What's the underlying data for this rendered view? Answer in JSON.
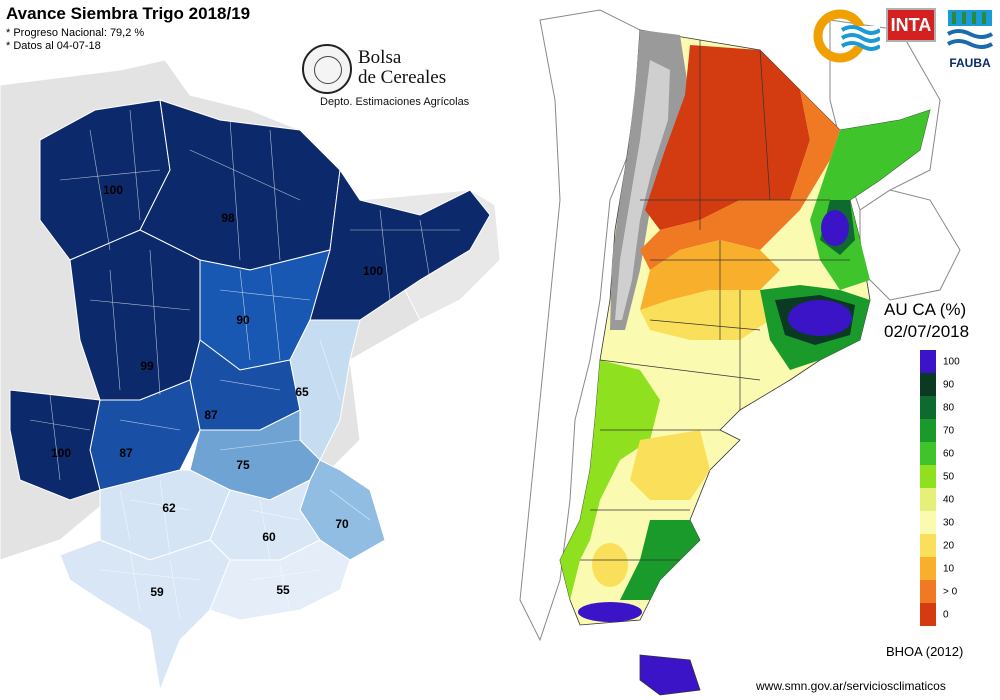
{
  "left_map": {
    "title": "Avance Siembra Trigo 2018/19",
    "notes": [
      "* Progreso Nacional: 79,2 %",
      "* Datos al 04-07-18"
    ],
    "publisher": {
      "line1": "Bolsa",
      "line2": "de Cereales",
      "department": "Depto. Estimaciones Agrícolas"
    },
    "zones": [
      {
        "label": "100",
        "color": "#0c2a6b"
      },
      {
        "label": "98",
        "color": "#0c2a6b"
      },
      {
        "label": "100",
        "color": "#0c2a6b"
      },
      {
        "label": "90",
        "color": "#1858b3"
      },
      {
        "label": "99",
        "color": "#0c2a6b"
      },
      {
        "label": "87",
        "color": "#1a4fa6"
      },
      {
        "label": "65",
        "color": "#c6dcf0"
      },
      {
        "label": "87",
        "color": "#1a4fa6"
      },
      {
        "label": "100",
        "color": "#0c2a6b"
      },
      {
        "label": "75",
        "color": "#6fa3d4"
      },
      {
        "label": "62",
        "color": "#d4e4f4"
      },
      {
        "label": "70",
        "color": "#92bde3"
      },
      {
        "label": "60",
        "color": "#d8e6f5"
      },
      {
        "label": "59",
        "color": "#d8e6f5"
      },
      {
        "label": "55",
        "color": "#e4edf8"
      }
    ]
  },
  "right_map": {
    "legend_title_line1": "AU CA (%)",
    "legend_title_line2": "02/07/2018",
    "legend": [
      {
        "label": "100",
        "color": "#3b14c8"
      },
      {
        "label": "90",
        "color": "#0a3a24"
      },
      {
        "label": "80",
        "color": "#0e6a2e"
      },
      {
        "label": "70",
        "color": "#1a9a2a"
      },
      {
        "label": "60",
        "color": "#3fc42c"
      },
      {
        "label": "50",
        "color": "#8fe01e"
      },
      {
        "label": "40",
        "color": "#e4f07a"
      },
      {
        "label": "30",
        "color": "#fafab0"
      },
      {
        "label": "20",
        "color": "#fae05a"
      },
      {
        "label": "10",
        "color": "#f8b02c"
      },
      {
        "label": "> 0",
        "color": "#f07a24"
      },
      {
        "label": "0",
        "color": "#d23c10"
      }
    ],
    "source": "BHOA (2012)",
    "url": "www.smn.gov.ar/serviciosclimaticos",
    "logos": {
      "inta": "INTA",
      "fauba": "FAUBA"
    }
  }
}
